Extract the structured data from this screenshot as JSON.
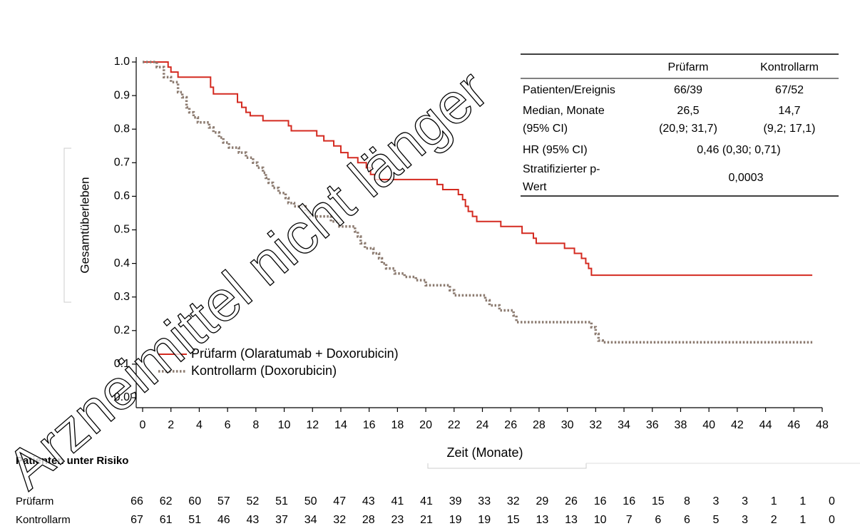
{
  "chart_data": {
    "type": "step",
    "watermark": "Arzneimittel nicht länger",
    "x_label": "Zeit (Monate)",
    "y_label": "Gesamtüberleben",
    "xlim": [
      0,
      48
    ],
    "xticks": [
      0,
      2,
      4,
      6,
      8,
      10,
      12,
      14,
      16,
      18,
      20,
      22,
      24,
      26,
      28,
      30,
      32,
      34,
      36,
      38,
      40,
      42,
      44,
      46,
      48
    ],
    "ylim": [
      -0.03,
      1.02
    ],
    "yticks": [
      {
        "value": 0,
        "label": "0.0"
      },
      0.1,
      0.2,
      0.3,
      0.4,
      0.5,
      0.6,
      0.7,
      0.8,
      0.9,
      {
        "value": 1,
        "label": "1.0"
      }
    ],
    "series": [
      {
        "name": "Prüfarm (Olaratumab + Doxorubicin)",
        "color": "#d42a20",
        "dashed": false,
        "x": [
          0,
          1.8,
          2.0,
          2.5,
          4.8,
          5.0,
          6.7,
          7.0,
          7.3,
          7.6,
          8.5,
          10.3,
          10.5,
          12.3,
          12.8,
          13.5,
          14.0,
          14.5,
          15.2,
          15.8,
          16.1,
          16.4,
          20.8,
          21.2,
          22.3,
          22.6,
          22.8,
          23.0,
          23.3,
          23.6,
          25.3,
          26.8,
          27.6,
          27.8,
          29.8,
          30.5,
          31.0,
          31.3,
          31.5,
          31.7,
          47.3
        ],
        "values": [
          1.0,
          0.985,
          0.97,
          0.955,
          0.925,
          0.905,
          0.88,
          0.865,
          0.85,
          0.84,
          0.825,
          0.81,
          0.795,
          0.78,
          0.765,
          0.75,
          0.73,
          0.715,
          0.7,
          0.685,
          0.665,
          0.65,
          0.635,
          0.62,
          0.605,
          0.59,
          0.57,
          0.555,
          0.54,
          0.525,
          0.51,
          0.49,
          0.475,
          0.46,
          0.445,
          0.43,
          0.415,
          0.4,
          0.385,
          0.365,
          0.365
        ]
      },
      {
        "name": "Kontrollarm (Doxorubicin)",
        "color": "#8c7b70",
        "dashed": true,
        "x": [
          0,
          1.0,
          1.5,
          2.0,
          2.5,
          2.8,
          3.1,
          3.3,
          3.6,
          3.9,
          4.7,
          5.0,
          5.4,
          5.7,
          6.1,
          6.8,
          7.3,
          7.8,
          8.1,
          8.5,
          8.7,
          8.9,
          9.2,
          9.6,
          10.1,
          10.3,
          10.7,
          11.5,
          11.8,
          13.3,
          13.9,
          15.0,
          15.2,
          15.4,
          15.7,
          16.3,
          16.7,
          16.9,
          17.2,
          17.8,
          18.5,
          19.3,
          20.0,
          21.7,
          22.0,
          24.2,
          24.5,
          25.2,
          26.2,
          26.4,
          31.7,
          32.0,
          32.2,
          32.5,
          47.3
        ],
        "values": [
          1.0,
          0.985,
          0.955,
          0.94,
          0.91,
          0.895,
          0.865,
          0.85,
          0.835,
          0.82,
          0.805,
          0.79,
          0.775,
          0.76,
          0.745,
          0.73,
          0.715,
          0.7,
          0.685,
          0.67,
          0.655,
          0.64,
          0.625,
          0.61,
          0.595,
          0.58,
          0.57,
          0.555,
          0.54,
          0.525,
          0.51,
          0.495,
          0.48,
          0.46,
          0.445,
          0.43,
          0.415,
          0.4,
          0.385,
          0.37,
          0.36,
          0.35,
          0.335,
          0.32,
          0.305,
          0.29,
          0.275,
          0.26,
          0.245,
          0.225,
          0.21,
          0.19,
          0.17,
          0.165,
          0.165
        ]
      }
    ],
    "summary_table": {
      "columns": [
        "Prüfarm",
        "Kontrollarm"
      ],
      "rows": [
        {
          "label": [
            "Patienten/Ereignis"
          ],
          "cells": [
            [
              "66/39"
            ],
            [
              "67/52"
            ]
          ]
        },
        {
          "label": [
            "Median, Monate",
            "(95% CI)"
          ],
          "cells": [
            [
              "26,5",
              "(20,9; 31,7)"
            ],
            [
              "14,7",
              "(9,2; 17,1)"
            ]
          ]
        },
        {
          "label": [
            "HR (95% CI)"
          ],
          "value": "0,46 (0,30; 0,71)"
        },
        {
          "label": [
            "Stratifizierter p-",
            "Wert"
          ],
          "value": "0,0003"
        }
      ]
    },
    "risk_table": {
      "title": "Patienten unter Risiko",
      "rows": [
        {
          "name": "Prüfarm",
          "values": [
            66,
            62,
            60,
            57,
            52,
            51,
            50,
            47,
            43,
            41,
            41,
            39,
            33,
            32,
            29,
            26,
            16,
            16,
            15,
            8,
            3,
            3,
            1,
            1,
            0
          ]
        },
        {
          "name": "Kontrollarm",
          "values": [
            67,
            61,
            51,
            46,
            43,
            37,
            34,
            32,
            28,
            23,
            21,
            19,
            19,
            15,
            13,
            13,
            10,
            7,
            6,
            6,
            5,
            3,
            2,
            1,
            0
          ]
        }
      ]
    }
  }
}
